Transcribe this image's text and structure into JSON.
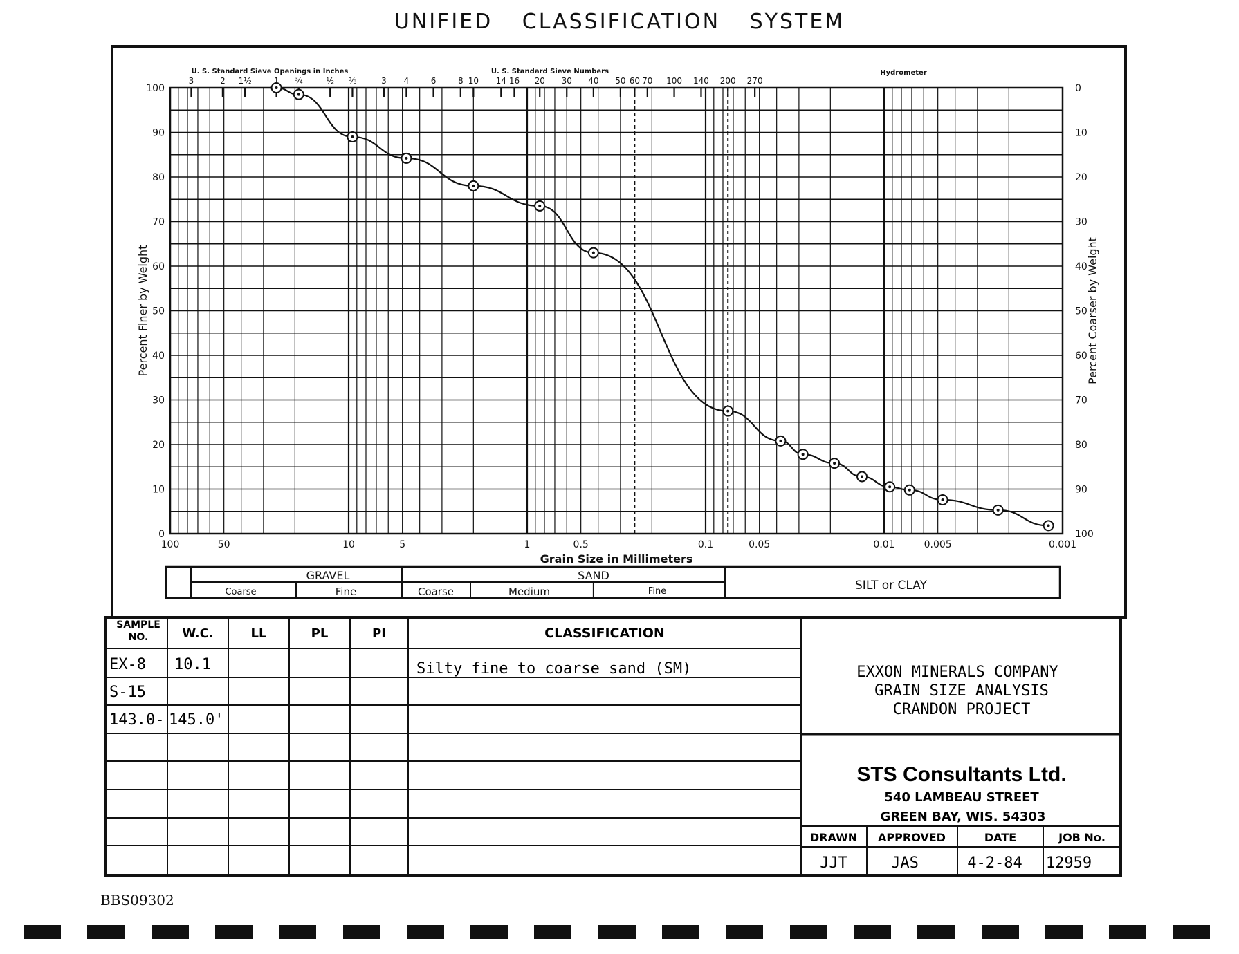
{
  "title": "UNIFIED CLASSIFICATION SYSTEM",
  "chart_data": {
    "type": "line",
    "x_scale": "log",
    "x_reversed": true,
    "xlim": [
      100,
      0.001
    ],
    "ylim": [
      0,
      100
    ],
    "xlabel": "Grain Size in Millimeters",
    "ylabel": "Percent Finer by Weight",
    "ylabel_right": "Percent Coarser by Weight",
    "x_ticks": [
      {
        "v": 100,
        "t": "100"
      },
      {
        "v": 50,
        "t": "50"
      },
      {
        "v": 10,
        "t": "10"
      },
      {
        "v": 5,
        "t": "5"
      },
      {
        "v": 1,
        "t": "1"
      },
      {
        "v": 0.5,
        "t": "0.5"
      },
      {
        "v": 0.1,
        "t": "0.1"
      },
      {
        "v": 0.05,
        "t": "0.05"
      },
      {
        "v": 0.01,
        "t": "0.01"
      },
      {
        "v": 0.005,
        "t": "0.005"
      },
      {
        "v": 0.001,
        "t": "0.001"
      }
    ],
    "y_ticks": [
      0,
      10,
      20,
      30,
      40,
      50,
      60,
      70,
      80,
      90,
      100
    ],
    "y_ticks_right": [
      100,
      90,
      80,
      70,
      60,
      50,
      40,
      30,
      20,
      10,
      0
    ],
    "top_axis_inches_label": "U. S. Standard Sieve Openings in Inches",
    "top_axis_inches": [
      {
        "v": 76.2,
        "t": "3"
      },
      {
        "v": 50.8,
        "t": "2"
      },
      {
        "v": 38.1,
        "t": "1½"
      },
      {
        "v": 25.4,
        "t": "1"
      },
      {
        "v": 19.05,
        "t": "¾"
      },
      {
        "v": 12.7,
        "t": "½"
      },
      {
        "v": 9.525,
        "t": "⅜"
      }
    ],
    "top_axis_sieve_label": "U. S. Standard Sieve Numbers",
    "top_axis_sieve": [
      {
        "v": 6.35,
        "t": "3"
      },
      {
        "v": 4.75,
        "t": "4"
      },
      {
        "v": 3.35,
        "t": "6"
      },
      {
        "v": 2.36,
        "t": "8"
      },
      {
        "v": 2.0,
        "t": "10"
      },
      {
        "v": 1.4,
        "t": "14"
      },
      {
        "v": 1.18,
        "t": "16"
      },
      {
        "v": 0.85,
        "t": "20"
      },
      {
        "v": 0.6,
        "t": "30"
      },
      {
        "v": 0.425,
        "t": "40"
      },
      {
        "v": 0.3,
        "t": "50"
      },
      {
        "v": 0.25,
        "t": "60"
      },
      {
        "v": 0.212,
        "t": "70"
      },
      {
        "v": 0.15,
        "t": "100"
      },
      {
        "v": 0.106,
        "t": "140"
      },
      {
        "v": 0.075,
        "t": "200"
      },
      {
        "v": 0.053,
        "t": "270"
      }
    ],
    "top_axis_hydrometer_label": "Hydrometer",
    "dashed_lines_at": [
      0.25,
      0.075
    ],
    "series": [
      {
        "x": [
          25.4,
          19.05,
          9.525,
          4.75,
          2.0,
          0.85,
          0.425,
          0.075,
          0.038,
          0.0285,
          0.019,
          0.0133,
          0.0093,
          0.0072,
          0.0047,
          0.0023,
          0.0012
        ],
        "y": [
          100,
          98.5,
          89,
          84.2,
          78,
          73.5,
          63,
          27.5,
          20.8,
          17.8,
          15.8,
          12.8,
          10.5,
          9.8,
          7.6,
          5.3,
          1.8
        ]
      }
    ],
    "classification_bands": [
      {
        "label": "GRAVEL",
        "parts": [
          {
            "label": "Coarse",
            "from": 76.2,
            "to": 19.05
          },
          {
            "label": "Fine",
            "from": 19.05,
            "to": 4.75
          }
        ]
      },
      {
        "label": "SAND",
        "parts": [
          {
            "label": "Coarse",
            "from": 4.75,
            "to": 2.0
          },
          {
            "label": "Medium",
            "from": 2.0,
            "to": 0.425
          },
          {
            "label": "Fine",
            "from": 0.425,
            "to": 0.075
          }
        ]
      },
      {
        "label": "SILT or CLAY",
        "parts": []
      }
    ]
  },
  "table": {
    "headers": {
      "sample_no": "SAMPLE NO.",
      "wc": "W.C.",
      "ll": "LL",
      "pl": "PL",
      "pi": "PI",
      "classification": "CLASSIFICATION"
    },
    "rows": [
      {
        "sample": "EX-8",
        "wc": "10.1",
        "ll": "",
        "pl": "",
        "pi": "",
        "classification": "Silty fine to coarse sand (SM)"
      },
      {
        "sample": "S-15",
        "wc": "",
        "ll": "",
        "pl": "",
        "pi": "",
        "classification": ""
      },
      {
        "sample": "143.0-",
        "wc": "145.0'",
        "ll": "",
        "pl": "",
        "pi": "",
        "classification": ""
      }
    ]
  },
  "project": {
    "line1": "EXXON MINERALS COMPANY",
    "line2": "GRAIN SIZE ANALYSIS",
    "line3": "CRANDON PROJECT"
  },
  "consultant": {
    "name": "STS Consultants Ltd.",
    "street": "540 LAMBEAU STREET",
    "city": "GREEN BAY, WIS. 54303"
  },
  "signoff": {
    "drawn_label": "DRAWN",
    "approved_label": "APPROVED",
    "date_label": "DATE",
    "job_label": "JOB No.",
    "drawn": "JJT",
    "approved": "JAS",
    "date": "4-2-84",
    "job": "12959"
  },
  "doc_id": "BBS09302"
}
